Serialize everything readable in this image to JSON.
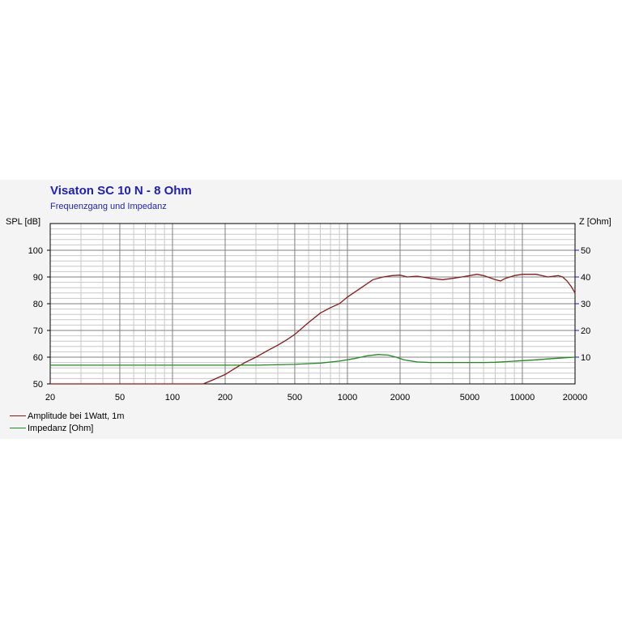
{
  "chart_data": {
    "type": "line",
    "title": "Visaton SC 10 N - 8 Ohm",
    "subtitle": "Frequenzgang und Impedanz",
    "ylabel_left": "SPL [dB]",
    "ylabel_right": "Z [Ohm]",
    "x_scale": "log",
    "xlim": [
      20,
      20000
    ],
    "x_ticks": [
      20,
      50,
      100,
      200,
      500,
      1000,
      2000,
      5000,
      10000,
      20000
    ],
    "ylim_left": [
      50,
      110
    ],
    "y_ticks_left": [
      50,
      60,
      70,
      80,
      90,
      100
    ],
    "ylim_right": [
      0,
      60
    ],
    "y_ticks_right": [
      10,
      20,
      30,
      40,
      50
    ],
    "grid": true,
    "legend_position": "bottom-left",
    "colors": {
      "series1": "#8b1a1a",
      "series2": "#1e8c1e",
      "title": "#1f1fb4",
      "right_axis": "#1f1fb4"
    },
    "series": [
      {
        "name": "Amplitude bei 1Watt, 1m",
        "axis": "left",
        "x": [
          20,
          50,
          100,
          150,
          170,
          200,
          230,
          260,
          300,
          350,
          400,
          450,
          500,
          600,
          700,
          800,
          900,
          1000,
          1200,
          1400,
          1600,
          1800,
          2000,
          2200,
          2500,
          3000,
          3500,
          4000,
          4500,
          5000,
          5500,
          6000,
          7000,
          7500,
          8000,
          9000,
          10000,
          12000,
          14000,
          16000,
          17000,
          18000,
          19000,
          20000
        ],
        "values": [
          50,
          50,
          50,
          50,
          51.5,
          53.5,
          56,
          58,
          60,
          62.5,
          64.5,
          66.5,
          68.5,
          73,
          76.5,
          78.5,
          80,
          82.5,
          86,
          89,
          90,
          90.5,
          90.7,
          90,
          90.3,
          89.5,
          89,
          89.5,
          90,
          90.5,
          91,
          90.5,
          89,
          88.5,
          89.5,
          90.5,
          91,
          91,
          90,
          90.5,
          90,
          88.5,
          86.5,
          84
        ]
      },
      {
        "name": "Impedanz [Ohm]",
        "axis": "right",
        "x": [
          20,
          50,
          100,
          200,
          300,
          500,
          700,
          900,
          1100,
          1300,
          1500,
          1700,
          1900,
          2100,
          2500,
          3000,
          4000,
          5000,
          6000,
          7000,
          8000,
          10000,
          12000,
          15000,
          20000
        ],
        "values": [
          7,
          7,
          7,
          7,
          7,
          7.3,
          7.8,
          8.5,
          9.5,
          10.5,
          11,
          10.8,
          10,
          9,
          8.2,
          8,
          8,
          8,
          8,
          8.1,
          8.3,
          8.7,
          9,
          9.5,
          10
        ]
      }
    ]
  }
}
